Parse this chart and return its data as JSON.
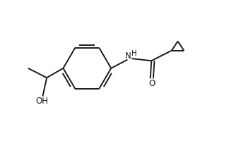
{
  "bg_color": "#ffffff",
  "line_color": "#1a1a1a",
  "line_width": 1.4,
  "font_size": 8.5,
  "figsize": [
    3.24,
    2.0
  ],
  "dpi": 100,
  "xlim": [
    0,
    10
  ],
  "ylim": [
    0,
    6.2
  ]
}
